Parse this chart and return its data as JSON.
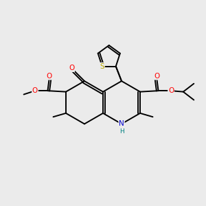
{
  "background_color": "#ebebeb",
  "figsize": [
    3.0,
    3.0
  ],
  "dpi": 100,
  "bond_color": "#000000",
  "bond_width": 1.4,
  "atom_colors": {
    "O": "#ff0000",
    "N": "#0000cc",
    "S": "#bbaa00",
    "H": "#008080",
    "C": "#000000"
  },
  "font_size": 7.5
}
